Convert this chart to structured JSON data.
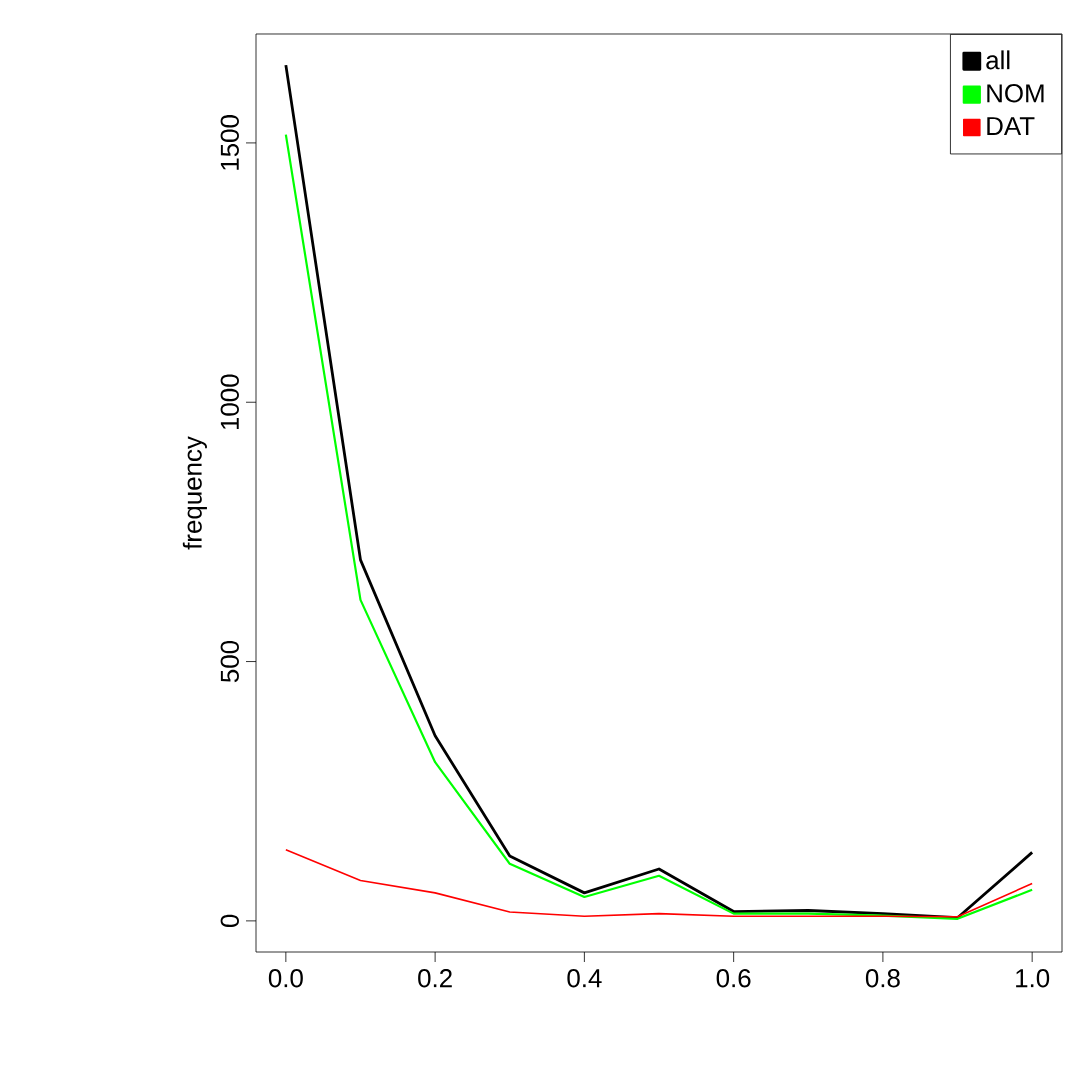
{
  "chart_data": {
    "type": "line",
    "ylabel": "frequency",
    "x": [
      0.0,
      0.1,
      0.2,
      0.3,
      0.4,
      0.5,
      0.6,
      0.7,
      0.8,
      0.9,
      1.0
    ],
    "series": [
      {
        "name": "all",
        "color": "#000000",
        "values": [
          1650,
          696,
          357,
          125,
          54,
          100,
          18,
          20,
          14,
          6,
          132
        ]
      },
      {
        "name": "NOM",
        "color": "#00ff00",
        "values": [
          1516,
          619,
          306,
          110,
          46,
          87,
          14,
          14,
          10,
          4,
          60
        ]
      },
      {
        "name": "DAT",
        "color": "#ff0000",
        "values": [
          137,
          78,
          54,
          17,
          9,
          14,
          9,
          9,
          9,
          8,
          72
        ]
      }
    ],
    "xlim": [
      -0.04,
      1.04
    ],
    "ylim": [
      -60,
      1710
    ],
    "xticks": [
      {
        "value": 0.0,
        "label": "0.0"
      },
      {
        "value": 0.2,
        "label": "0.2"
      },
      {
        "value": 0.4,
        "label": "0.4"
      },
      {
        "value": 0.6,
        "label": "0.6"
      },
      {
        "value": 0.8,
        "label": "0.8"
      },
      {
        "value": 1.0,
        "label": "1.0"
      }
    ],
    "yticks": [
      0,
      500,
      1000,
      1500
    ],
    "legend": "top right",
    "grid": false,
    "marker": "none",
    "line_style": "solid"
  }
}
